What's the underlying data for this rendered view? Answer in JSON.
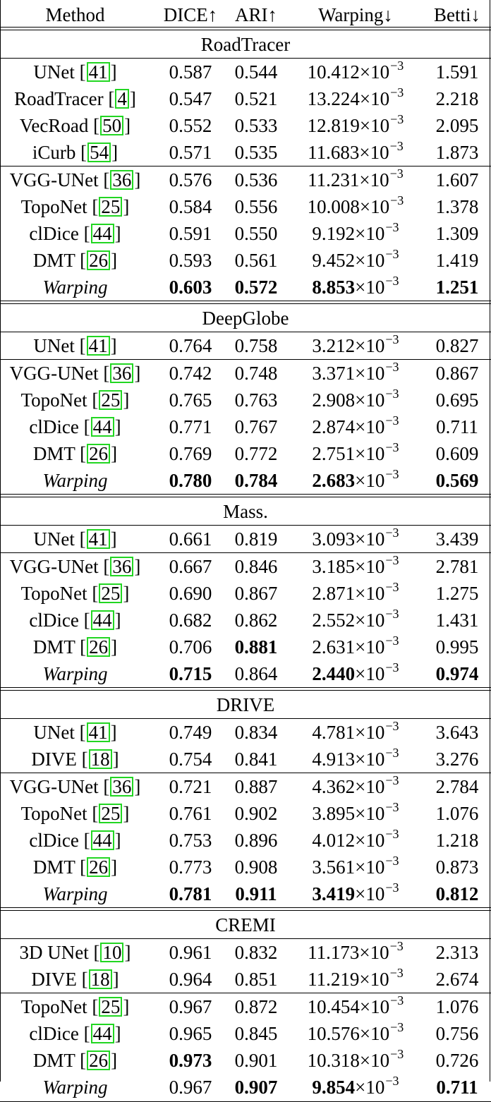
{
  "header": {
    "method": "Method",
    "dice": "DICE↑",
    "ari": "ARI↑",
    "warping": "Warping↓",
    "betti": "Betti↓"
  },
  "sections": [
    {
      "name": "RoadTracer",
      "groups": [
        [
          {
            "method": "UNet",
            "cite": "41",
            "dice": "0.587",
            "ari": "0.544",
            "warp": "10.412",
            "mult": "×10",
            "exp": "−3",
            "betti": "1.591"
          },
          {
            "method": "RoadTracer",
            "cite": "4",
            "dice": "0.547",
            "ari": "0.521",
            "warp": "13.224",
            "mult": "×10",
            "exp": "−3",
            "betti": "2.218"
          },
          {
            "method": "VecRoad",
            "cite": "50",
            "dice": "0.552",
            "ari": "0.533",
            "warp": "12.819",
            "mult": "×10",
            "exp": "−3",
            "betti": "2.095"
          },
          {
            "method": "iCurb",
            "cite": "54",
            "dice": "0.571",
            "ari": "0.535",
            "warp": "11.683",
            "mult": "×10",
            "exp": "−3",
            "betti": "1.873"
          }
        ],
        [
          {
            "method": "VGG-UNet",
            "cite": "36",
            "dice": "0.576",
            "ari": "0.536",
            "warp": "11.231",
            "mult": "×10",
            "exp": "−3",
            "betti": "1.607"
          },
          {
            "method": "TopoNet",
            "cite": "25",
            "dice": "0.584",
            "ari": "0.556",
            "warp": "10.008",
            "mult": "×10",
            "exp": "−3",
            "betti": "1.378"
          },
          {
            "method": "clDice",
            "cite": "44",
            "dice": "0.591",
            "ari": "0.550",
            "warp": "9.192",
            "mult": "×10",
            "exp": "−3",
            "betti": "1.309"
          },
          {
            "method": "DMT",
            "cite": "26",
            "dice": "0.593",
            "ari": "0.561",
            "warp": "9.452",
            "mult": "×10",
            "exp": "−3",
            "betti": "1.419"
          },
          {
            "method": "Warping",
            "italic": true,
            "dice": "0.603",
            "ari": "0.572",
            "warp": "8.853",
            "mult": "×10",
            "exp": "−3",
            "betti": "1.251",
            "bold": [
              "dice",
              "ari",
              "warp",
              "betti"
            ]
          }
        ]
      ]
    },
    {
      "name": "DeepGlobe",
      "groups": [
        [
          {
            "method": "UNet",
            "cite": "41",
            "dice": "0.764",
            "ari": "0.758",
            "warp": "3.212",
            "mult": "×10",
            "exp": "−3",
            "betti": "0.827"
          }
        ],
        [
          {
            "method": "VGG-UNet",
            "cite": "36",
            "dice": "0.742",
            "ari": "0.748",
            "warp": "3.371",
            "mult": "×10",
            "exp": "−3",
            "betti": "0.867"
          },
          {
            "method": "TopoNet",
            "cite": "25",
            "dice": "0.765",
            "ari": "0.763",
            "warp": "2.908",
            "mult": "×10",
            "exp": "−3",
            "betti": "0.695"
          },
          {
            "method": "clDice",
            "cite": "44",
            "dice": "0.771",
            "ari": "0.767",
            "warp": "2.874",
            "mult": "×10",
            "exp": "−3",
            "betti": "0.711"
          },
          {
            "method": "DMT",
            "cite": "26",
            "dice": "0.769",
            "ari": "0.772",
            "warp": "2.751",
            "mult": "×10",
            "exp": "−3",
            "betti": "0.609"
          },
          {
            "method": "Warping",
            "italic": true,
            "dice": "0.780",
            "ari": "0.784",
            "warp": "2.683",
            "mult": "×10",
            "exp": "−3",
            "betti": "0.569",
            "bold": [
              "dice",
              "ari",
              "warp",
              "betti"
            ]
          }
        ]
      ]
    },
    {
      "name": "Mass.",
      "groups": [
        [
          {
            "method": "UNet",
            "cite": "41",
            "dice": "0.661",
            "ari": "0.819",
            "warp": "3.093",
            "mult": "×10",
            "exp": "−3",
            "betti": "3.439"
          }
        ],
        [
          {
            "method": "VGG-UNet",
            "cite": "36",
            "dice": "0.667",
            "ari": "0.846",
            "warp": "3.185",
            "mult": "×10",
            "exp": "−3",
            "betti": "2.781"
          },
          {
            "method": "TopoNet",
            "cite": "25",
            "dice": "0.690",
            "ari": "0.867",
            "warp": "2.871",
            "mult": "×10",
            "exp": "−3",
            "betti": "1.275"
          },
          {
            "method": "clDice",
            "cite": "44",
            "dice": "0.682",
            "ari": "0.862",
            "warp": "2.552",
            "mult": "×10",
            "exp": "−3",
            "betti": "1.431"
          },
          {
            "method": "DMT",
            "cite": "26",
            "dice": "0.706",
            "ari": "0.881",
            "warp": "2.631",
            "mult": "×10",
            "exp": "−3",
            "betti": "0.995",
            "bold": [
              "ari"
            ]
          },
          {
            "method": "Warping",
            "italic": true,
            "dice": "0.715",
            "ari": "0.864",
            "warp": "2.440",
            "mult": "×10",
            "exp": "−3",
            "betti": "0.974",
            "bold": [
              "dice",
              "warp",
              "betti"
            ]
          }
        ]
      ]
    },
    {
      "name": "DRIVE",
      "groups": [
        [
          {
            "method": "UNet",
            "cite": "41",
            "dice": "0.749",
            "ari": "0.834",
            "warp": "4.781",
            "mult": "×10",
            "exp": "−3",
            "betti": "3.643"
          },
          {
            "method": "DIVE",
            "cite": "18",
            "dice": "0.754",
            "ari": "0.841",
            "warp": "4.913",
            "mult": "×10",
            "exp": "−3",
            "betti": "3.276"
          }
        ],
        [
          {
            "method": "VGG-UNet",
            "cite": "36",
            "dice": "0.721",
            "ari": "0.887",
            "warp": "4.362",
            "mult": "×10",
            "exp": "−3",
            "betti": "2.784"
          },
          {
            "method": "TopoNet",
            "cite": "25",
            "dice": "0.761",
            "ari": "0.902",
            "warp": "3.895",
            "mult": "×10",
            "exp": "−3",
            "betti": "1.076"
          },
          {
            "method": "clDice",
            "cite": "44",
            "dice": "0.753",
            "ari": "0.896",
            "warp": "4.012",
            "mult": "×10",
            "exp": "−3",
            "betti": "1.218"
          },
          {
            "method": "DMT",
            "cite": "26",
            "dice": "0.773",
            "ari": "0.908",
            "warp": "3.561",
            "mult": "×10",
            "exp": "−3",
            "betti": "0.873"
          },
          {
            "method": "Warping",
            "italic": true,
            "dice": "0.781",
            "ari": "0.911",
            "warp": "3.419",
            "mult": "×10",
            "exp": "−3",
            "betti": "0.812",
            "bold": [
              "dice",
              "ari",
              "warp",
              "betti"
            ]
          }
        ]
      ]
    },
    {
      "name": "CREMI",
      "groups": [
        [
          {
            "method": "3D UNet",
            "cite": "10",
            "dice": "0.961",
            "ari": "0.832",
            "warp": "11.173",
            "mult": "×10",
            "exp": "−3",
            "betti": "2.313"
          },
          {
            "method": "DIVE",
            "cite": "18",
            "dice": "0.964",
            "ari": "0.851",
            "warp": "11.219",
            "mult": "×10",
            "exp": "−3",
            "betti": "2.674"
          }
        ],
        [
          {
            "method": "TopoNet",
            "cite": "25",
            "dice": "0.967",
            "ari": "0.872",
            "warp": "10.454",
            "mult": "×10",
            "exp": "−3",
            "betti": "1.076"
          },
          {
            "method": "clDice",
            "cite": "44",
            "dice": "0.965",
            "ari": "0.845",
            "warp": "10.576",
            "mult": "×10",
            "exp": "−3",
            "betti": "0.756"
          },
          {
            "method": "DMT",
            "cite": "26",
            "dice": "0.973",
            "ari": "0.901",
            "warp": "10.318",
            "mult": "×10",
            "exp": "−3",
            "betti": "0.726",
            "bold": [
              "dice"
            ]
          },
          {
            "method": "Warping",
            "italic": true,
            "dice": "0.967",
            "ari": "0.907",
            "warp": "9.854",
            "mult": "×10",
            "exp": "−3",
            "betti": "0.711",
            "bold": [
              "ari",
              "warp",
              "betti"
            ]
          }
        ]
      ]
    }
  ]
}
